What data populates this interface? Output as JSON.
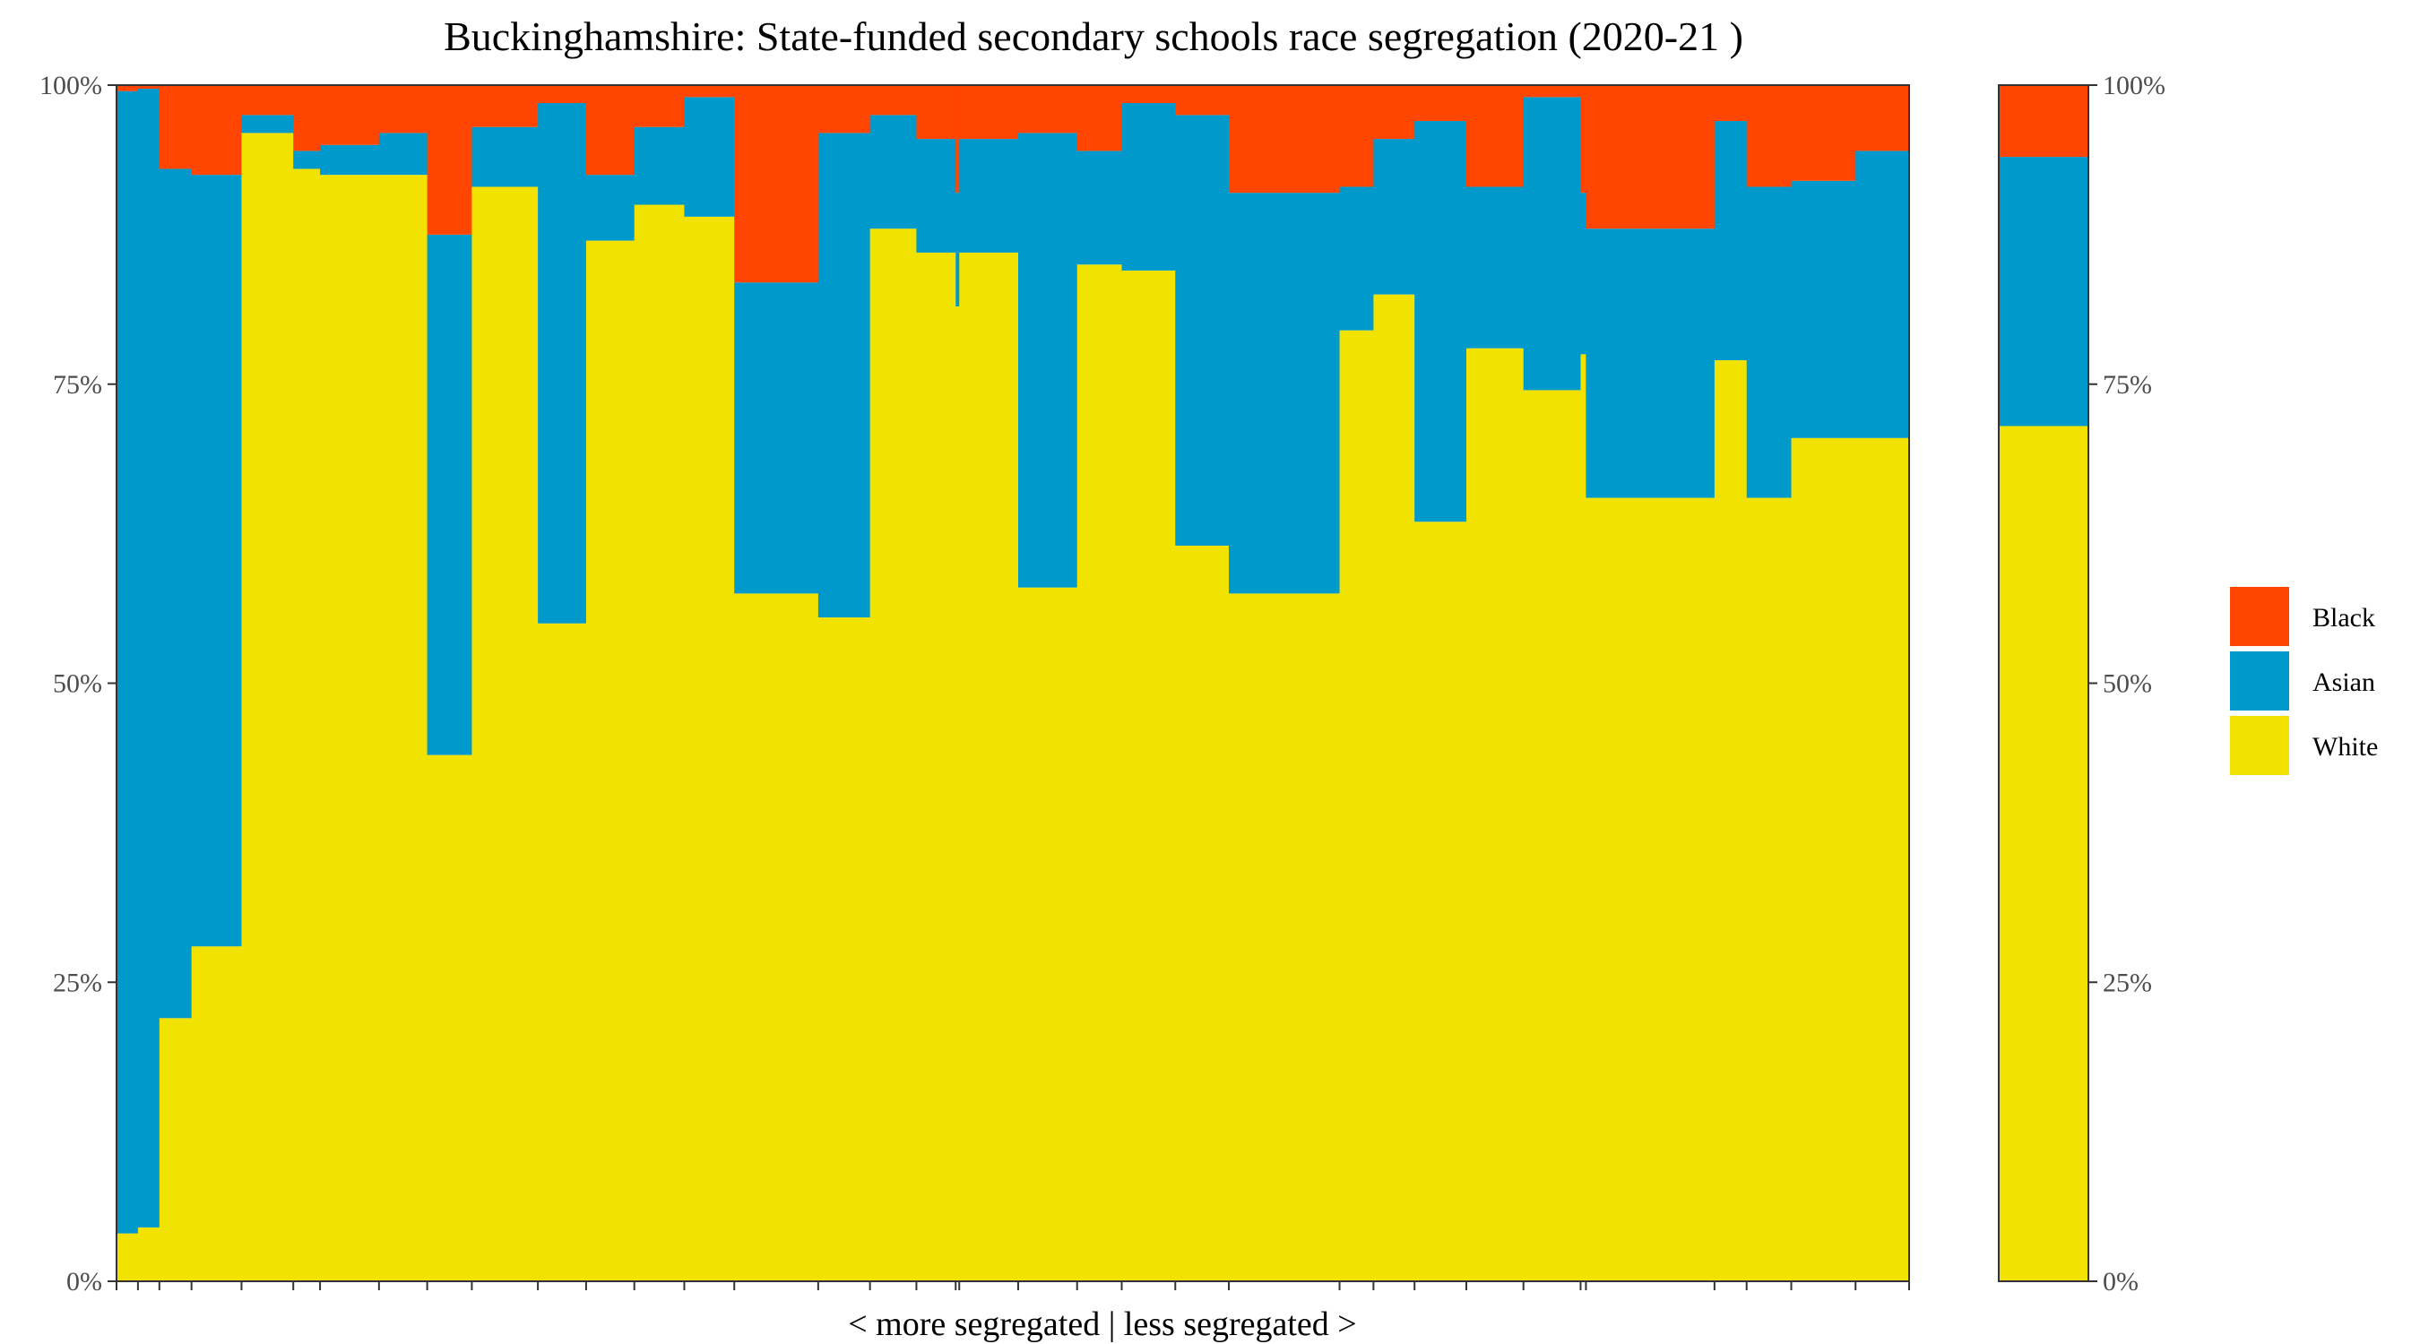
{
  "chart_data": {
    "type": "bar",
    "subtype": "stacked-variable-width (marimekko)",
    "title": "Buckinghamshire: State-funded secondary schools race segregation (2020-21 )",
    "xlabel": "< more segregated | less segregated >",
    "ylabel": "",
    "ylim": [
      0,
      1
    ],
    "y_ticks": [
      "0%",
      "25%",
      "50%",
      "75%",
      "100%"
    ],
    "y_tick_values": [
      0,
      0.25,
      0.5,
      0.75,
      1
    ],
    "grid": false,
    "legend_position": "right",
    "series": [
      {
        "name": "Black",
        "color": "#FF4500"
      },
      {
        "name": "Asian",
        "color": "#0099CC"
      },
      {
        "name": "White",
        "color": "#F2E200"
      }
    ],
    "schools_x_total": 1000,
    "schools": [
      {
        "width": 12,
        "white": 0.04,
        "asian": 0.955,
        "black": 0.005
      },
      {
        "width": 12,
        "white": 0.045,
        "asian": 0.952,
        "black": 0.003
      },
      {
        "width": 18,
        "white": 0.22,
        "asian": 0.71,
        "black": 0.07
      },
      {
        "width": 28,
        "white": 0.28,
        "asian": 0.645,
        "black": 0.075
      },
      {
        "width": 29,
        "white": 0.96,
        "asian": 0.015,
        "black": 0.025
      },
      {
        "width": 15,
        "white": 0.93,
        "asian": 0.015,
        "black": 0.055
      },
      {
        "width": 33,
        "white": 0.925,
        "asian": 0.025,
        "black": 0.05
      },
      {
        "width": 27,
        "white": 0.925,
        "asian": 0.035,
        "black": 0.04
      },
      {
        "width": 25,
        "white": 0.44,
        "asian": 0.435,
        "black": 0.125
      },
      {
        "width": 37,
        "white": 0.915,
        "asian": 0.05,
        "black": 0.035
      },
      {
        "width": 27,
        "white": 0.55,
        "asian": 0.435,
        "black": 0.015
      },
      {
        "width": 27,
        "white": 0.87,
        "asian": 0.055,
        "black": 0.075
      },
      {
        "width": 28,
        "white": 0.9,
        "asian": 0.065,
        "black": 0.035
      },
      {
        "width": 28,
        "white": 0.89,
        "asian": 0.1,
        "black": 0.01
      },
      {
        "width": 47,
        "white": 0.575,
        "asian": 0.26,
        "black": 0.165
      },
      {
        "width": 29,
        "white": 0.555,
        "asian": 0.405,
        "black": 0.04
      },
      {
        "width": 26,
        "white": 0.88,
        "asian": 0.095,
        "black": 0.025
      },
      {
        "width": 22,
        "white": 0.86,
        "asian": 0.095,
        "black": 0.045
      },
      {
        "width": 2,
        "white": 0.815,
        "asian": 0.095,
        "black": 0.09
      },
      {
        "width": 33,
        "white": 0.86,
        "asian": 0.095,
        "black": 0.045
      },
      {
        "width": 33,
        "white": 0.58,
        "asian": 0.38,
        "black": 0.04
      },
      {
        "width": 25,
        "white": 0.85,
        "asian": 0.095,
        "black": 0.055
      },
      {
        "width": 30,
        "white": 0.845,
        "asian": 0.14,
        "black": 0.015
      },
      {
        "width": 30,
        "white": 0.615,
        "asian": 0.36,
        "black": 0.025
      },
      {
        "width": 62,
        "white": 0.575,
        "asian": 0.335,
        "black": 0.09
      },
      {
        "width": 19,
        "white": 0.795,
        "asian": 0.12,
        "black": 0.085
      },
      {
        "width": 23,
        "white": 0.825,
        "asian": 0.13,
        "black": 0.045
      },
      {
        "width": 29,
        "white": 0.635,
        "asian": 0.335,
        "black": 0.03
      },
      {
        "width": 32,
        "white": 0.78,
        "asian": 0.135,
        "black": 0.085
      },
      {
        "width": 32,
        "white": 0.745,
        "asian": 0.245,
        "black": 0.01
      },
      {
        "width": 3,
        "white": 0.775,
        "asian": 0.135,
        "black": 0.09
      },
      {
        "width": 72,
        "white": 0.655,
        "asian": 0.225,
        "black": 0.12
      },
      {
        "width": 18,
        "white": 0.77,
        "asian": 0.2,
        "black": 0.03
      },
      {
        "width": 25,
        "white": 0.655,
        "asian": 0.26,
        "black": 0.085
      },
      {
        "width": 36,
        "white": 0.705,
        "asian": 0.215,
        "black": 0.08
      },
      {
        "width": 30,
        "white": 0.705,
        "asian": 0.24,
        "black": 0.055
      }
    ],
    "average": {
      "white": 0.715,
      "asian": 0.225,
      "black": 0.06
    }
  }
}
